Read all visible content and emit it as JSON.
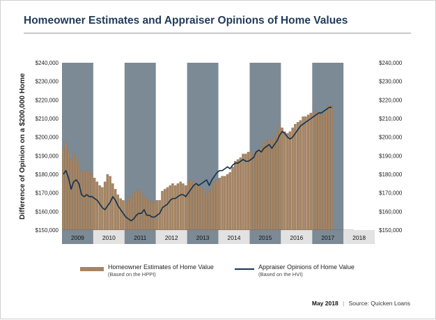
{
  "header": {
    "title": "Homeowner Estimates and Appraiser Opinions of Home Values"
  },
  "footer": {
    "date": "May 2018",
    "separator": "|",
    "source": "Source: Quicken Loans"
  },
  "legend": {
    "bars_label": "Homeowner Estimates of Home Value",
    "bars_sub": "(Based on the HPPI)",
    "line_label": "Appraiser Opinions of Home Value",
    "line_sub": "(Based on the HVI)"
  },
  "colors": {
    "bar": "#a58564",
    "bar_edge": "#8c6c4e",
    "line": "#17344f",
    "shade": "#7c8a96",
    "year_band": "#e2e2e2",
    "text": "#222222"
  },
  "chart_data": {
    "type": "bar",
    "ylabel": "Difference of Opinion on a $200,000 Home",
    "ylim": [
      150000,
      240000
    ],
    "y_ticks": [
      150000,
      160000,
      170000,
      180000,
      190000,
      200000,
      210000,
      220000,
      230000,
      240000
    ],
    "y_tick_labels": [
      "$150,000",
      "$160,000",
      "$170,000",
      "$180,000",
      "$190,000",
      "$200,000",
      "$210,000",
      "$220,000",
      "$230,000",
      "$240,000"
    ],
    "year_labels": [
      "2009",
      "2010",
      "2011",
      "2012",
      "2013",
      "2014",
      "2015",
      "2016",
      "2017",
      "2018"
    ],
    "shaded_years": [
      "2009",
      "2011",
      "2013",
      "2015",
      "2017"
    ],
    "start": "2009-01",
    "series": [
      {
        "name": "Homeowner Estimates of Home Value",
        "type": "bar",
        "values": [
          194000,
          197000,
          192000,
          188000,
          191000,
          189000,
          186000,
          182000,
          181000,
          182000,
          182000,
          180000,
          178000,
          176000,
          174000,
          173000,
          176000,
          180000,
          179000,
          175000,
          172000,
          169000,
          167000,
          166000,
          165000,
          166000,
          168000,
          170000,
          171000,
          172000,
          170000,
          168000,
          167000,
          166000,
          165000,
          165000,
          166000,
          166000,
          171000,
          172000,
          173000,
          174000,
          175000,
          174000,
          175000,
          176000,
          175000,
          174000,
          176000,
          177000,
          176000,
          175000,
          174000,
          173000,
          172000,
          169000,
          171000,
          174000,
          176000,
          177000,
          178000,
          179000,
          179000,
          180000,
          181000,
          184000,
          187000,
          188000,
          189000,
          191000,
          191000,
          192000,
          192000,
          191000,
          192000,
          193000,
          195000,
          197000,
          198000,
          199000,
          198000,
          200000,
          203000,
          206000,
          205000,
          203000,
          202000,
          203000,
          205000,
          207000,
          208000,
          209000,
          211000,
          211000,
          212000,
          213000,
          213000,
          214000,
          213000,
          212000,
          213000,
          215000,
          217000,
          217000
        ]
      },
      {
        "name": "Appraiser Opinions of Home Value",
        "type": "line",
        "values": [
          180000,
          182000,
          178000,
          172000,
          176000,
          177000,
          175000,
          169000,
          168000,
          169000,
          168000,
          168000,
          167000,
          166000,
          164000,
          162000,
          161000,
          163000,
          165000,
          168000,
          166000,
          163000,
          161000,
          159000,
          157000,
          156000,
          155000,
          156000,
          158000,
          159000,
          159000,
          161000,
          158000,
          158000,
          157000,
          157000,
          158000,
          159000,
          162000,
          163000,
          164000,
          166000,
          167000,
          167000,
          168000,
          169000,
          169000,
          168000,
          170000,
          172000,
          174000,
          175000,
          174000,
          175000,
          176000,
          177000,
          174000,
          177000,
          179000,
          181000,
          182000,
          182000,
          183000,
          184000,
          183000,
          185000,
          186000,
          186000,
          187000,
          188000,
          187000,
          187000,
          188000,
          189000,
          192000,
          193000,
          192000,
          194000,
          195000,
          196000,
          194000,
          196000,
          198000,
          201000,
          203000,
          202000,
          200000,
          199000,
          200000,
          202000,
          204000,
          206000,
          207000,
          208000,
          209000,
          210000,
          211000,
          212000,
          213000,
          213000,
          214000,
          215000,
          216000,
          216000
        ]
      }
    ],
    "grid": false
  }
}
